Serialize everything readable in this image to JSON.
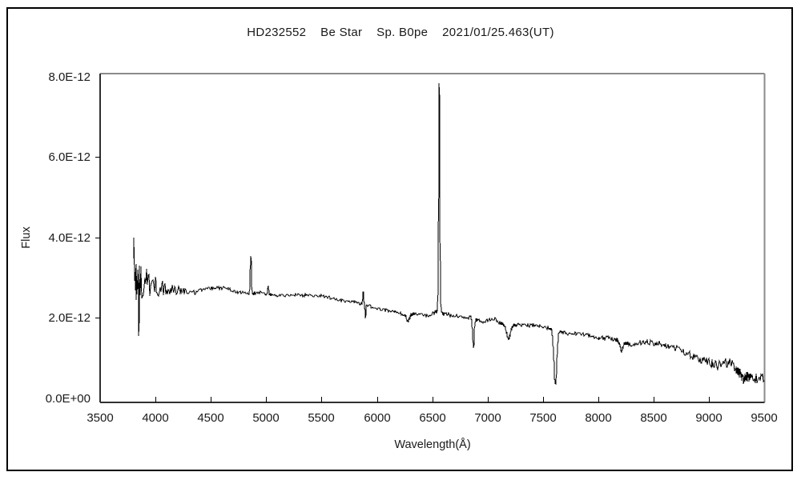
{
  "header": {
    "object": "HD232552",
    "object_class": "Be Star",
    "spectral_type": "Sp. B0pe",
    "epoch": "2021/01/25.463(UT)"
  },
  "figure": {
    "background": "#ffffff",
    "border_color": "#000000",
    "frame_dark_color": "#303030",
    "frame_light_color": "#8a8a8a",
    "line_color": "#000000",
    "text_color": "#1a1a1a"
  },
  "chart_data": {
    "type": "line",
    "title": "HD232552    Be Star    Sp. B0pe    2021/01/25.463(UT)",
    "xlabel": "Wavelength(Å)",
    "ylabel": "Flux",
    "xlim": [
      3500,
      9500
    ],
    "ylim": [
      0,
      8e-12
    ],
    "flux_scale": 1e-12,
    "x_ticks": [
      3500,
      4000,
      4500,
      5000,
      5500,
      6000,
      6500,
      7000,
      7500,
      8000,
      8500,
      9000,
      9500
    ],
    "y_ticks": [
      {
        "value": 0,
        "label": "0.0E+00"
      },
      {
        "value": 2,
        "label": "2.0E-12"
      },
      {
        "value": 4,
        "label": "4.0E-12"
      },
      {
        "value": 6,
        "label": "6.0E-12"
      },
      {
        "value": 8,
        "label": "8.0E-12"
      }
    ],
    "grid": false,
    "legend": null,
    "wavelength_range": [
      3805,
      9505
    ],
    "noise_seed": 20210125,
    "continuum_points_flux_1e12": [
      [
        3805,
        2.95
      ],
      [
        3900,
        2.86
      ],
      [
        4050,
        2.76
      ],
      [
        4200,
        2.68
      ],
      [
        4350,
        2.63
      ],
      [
        4480,
        2.74
      ],
      [
        4650,
        2.74
      ],
      [
        4720,
        2.64
      ],
      [
        4850,
        2.6
      ],
      [
        4950,
        2.62
      ],
      [
        5100,
        2.55
      ],
      [
        5300,
        2.57
      ],
      [
        5500,
        2.55
      ],
      [
        5700,
        2.43
      ],
      [
        5860,
        2.36
      ],
      [
        5950,
        2.28
      ],
      [
        6050,
        2.21
      ],
      [
        6150,
        2.16
      ],
      [
        6250,
        2.07
      ],
      [
        6350,
        2.1
      ],
      [
        6450,
        2.05
      ],
      [
        6530,
        2.15
      ],
      [
        6620,
        2.1
      ],
      [
        6750,
        2.03
      ],
      [
        6860,
        2.0
      ],
      [
        6950,
        1.9
      ],
      [
        7060,
        1.97
      ],
      [
        7160,
        1.8
      ],
      [
        7300,
        1.83
      ],
      [
        7450,
        1.8
      ],
      [
        7580,
        1.73
      ],
      [
        7700,
        1.63
      ],
      [
        7850,
        1.6
      ],
      [
        8000,
        1.52
      ],
      [
        8150,
        1.47
      ],
      [
        8280,
        1.34
      ],
      [
        8420,
        1.42
      ],
      [
        8560,
        1.35
      ],
      [
        8700,
        1.24
      ],
      [
        8850,
        1.05
      ],
      [
        8960,
        0.92
      ],
      [
        9080,
        0.82
      ],
      [
        9180,
        0.9
      ],
      [
        9280,
        0.62
      ],
      [
        9380,
        0.5
      ],
      [
        9505,
        0.5
      ]
    ],
    "spectral_features": [
      {
        "name": "emission-spike-3807",
        "center": 3807,
        "amplitude": 0.55,
        "sigma": 3
      },
      {
        "name": "absorption-spike-3849",
        "center": 3849,
        "amplitude": -1.05,
        "sigma": 2.5
      },
      {
        "name": "emission-4861",
        "center": 4861,
        "amplitude": 0.92,
        "sigma": 5
      },
      {
        "name": "emission-5018",
        "center": 5018,
        "amplitude": 0.2,
        "sigma": 5
      },
      {
        "name": "emission-5876",
        "center": 5876,
        "amplitude": 0.3,
        "sigma": 4
      },
      {
        "name": "absorption-5897",
        "center": 5897,
        "amplitude": -0.3,
        "sigma": 3.5
      },
      {
        "name": "absorption-6280",
        "center": 6280,
        "amplitude": -0.17,
        "sigma": 12
      },
      {
        "name": "emission-6563",
        "center": 6563,
        "amplitude": 5.72,
        "sigma": 5.5
      },
      {
        "name": "absorption-6872",
        "center": 6872,
        "amplitude": -0.72,
        "sigma": 7
      },
      {
        "name": "absorption-7190",
        "center": 7190,
        "amplitude": -0.32,
        "sigma": 16
      },
      {
        "name": "absorption-7612",
        "center": 7612,
        "amplitude": -1.38,
        "sigma": 13
      },
      {
        "name": "absorption-8210",
        "center": 8210,
        "amplitude": -0.25,
        "sigma": 12
      },
      {
        "name": "absorption-9310",
        "center": 9310,
        "amplitude": -0.12,
        "sigma": 15
      }
    ],
    "noise_envelope_flux_1e12": [
      [
        3805,
        0.5
      ],
      [
        3900,
        0.4
      ],
      [
        4000,
        0.28
      ],
      [
        4100,
        0.16
      ],
      [
        4250,
        0.09
      ],
      [
        4400,
        0.055
      ],
      [
        4700,
        0.04
      ],
      [
        5500,
        0.035
      ],
      [
        6300,
        0.04
      ],
      [
        6800,
        0.045
      ],
      [
        7400,
        0.04
      ],
      [
        7900,
        0.05
      ],
      [
        8300,
        0.06
      ],
      [
        8600,
        0.075
      ],
      [
        8900,
        0.1
      ],
      [
        9150,
        0.12
      ],
      [
        9505,
        0.14
      ]
    ]
  }
}
